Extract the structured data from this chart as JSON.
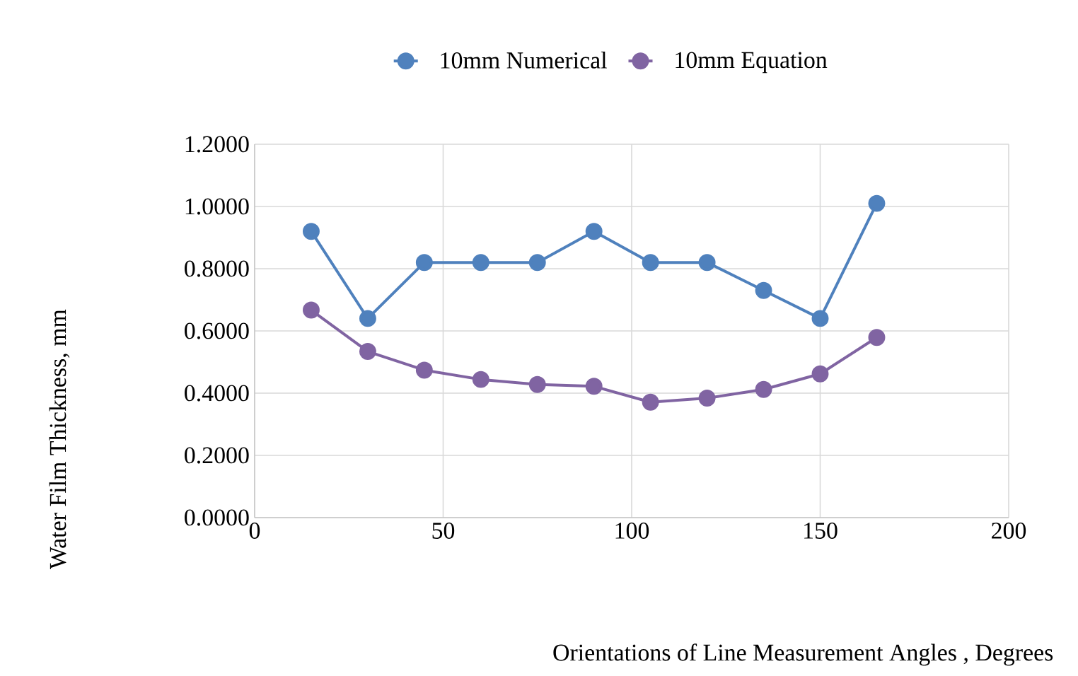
{
  "chart_data": {
    "type": "line",
    "xlabel": "Orientations of Line Measurement Angles , Degrees",
    "ylabel": "Water Film Thickness, mm",
    "x": [
      15,
      30,
      45,
      60,
      75,
      90,
      105,
      120,
      135,
      150,
      165
    ],
    "series": [
      {
        "name": "10mm Numerical",
        "color": "#4f81bd",
        "values": [
          0.92,
          0.64,
          0.82,
          0.82,
          0.82,
          0.92,
          0.82,
          0.82,
          0.73,
          0.64,
          1.01
        ]
      },
      {
        "name": "10mm Equation",
        "color": "#8064a2",
        "values": [
          0.667,
          0.534,
          0.474,
          0.444,
          0.428,
          0.422,
          0.371,
          0.384,
          0.412,
          0.462,
          0.579
        ]
      }
    ],
    "xlim": [
      0,
      200
    ],
    "xticks": [
      0,
      50,
      100,
      150,
      200
    ],
    "ylim": [
      0,
      1.2
    ],
    "yticks": [
      {
        "value": 0,
        "label": "0.0000"
      },
      {
        "value": 0.2,
        "label": "0.2000"
      },
      {
        "value": 0.4,
        "label": "0.4000"
      },
      {
        "value": 0.6,
        "label": "0.6000"
      },
      {
        "value": 0.8,
        "label": "0.8000"
      },
      {
        "value": 1.0,
        "label": "1.0000"
      },
      {
        "value": 1.2,
        "label": "1.2000"
      }
    ],
    "grid": true,
    "legend": "top",
    "marker": "circle",
    "line_style": "solid"
  }
}
